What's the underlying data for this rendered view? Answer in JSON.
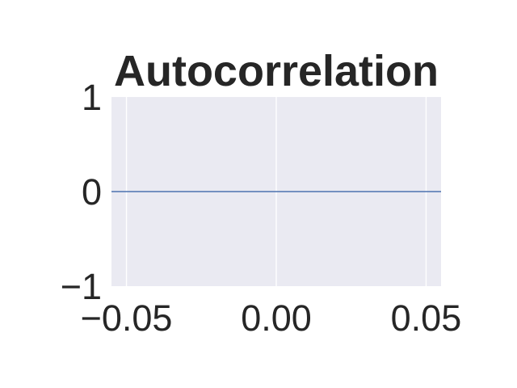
{
  "chart_data": {
    "type": "line",
    "title": "Autocorrelation",
    "xlabel": "",
    "ylabel": "",
    "xlim": [
      -0.055,
      0.055
    ],
    "ylim": [
      -1,
      1
    ],
    "xticks": [
      -0.05,
      0.0,
      0.05
    ],
    "xtick_labels": [
      "−0.05",
      "0.00",
      "0.05"
    ],
    "yticks": [
      -1,
      0,
      1
    ],
    "ytick_labels": [
      "−1",
      "0",
      "1"
    ],
    "grid": true,
    "series": [
      {
        "x": [
          -0.055,
          0.055
        ],
        "y": [
          0,
          0
        ],
        "color": "#4c72b0"
      }
    ],
    "colors": {
      "plot_background": "#eaeaf2",
      "grid": "#ffffff",
      "text": "#262626"
    }
  }
}
